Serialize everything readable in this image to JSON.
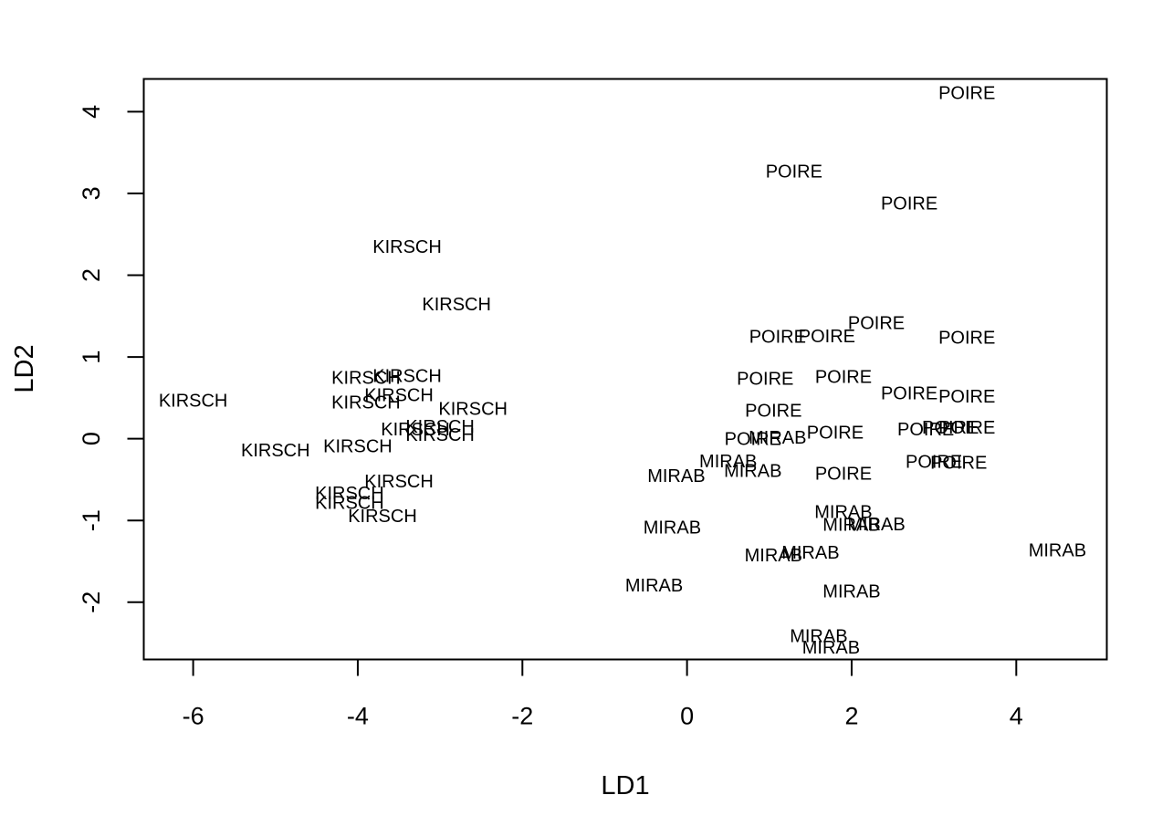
{
  "chart_data": {
    "type": "scatter",
    "marker": "text-label",
    "xlabel": "LD1",
    "ylabel": "LD2",
    "xlim": [
      -6.6,
      5.1
    ],
    "ylim": [
      -2.7,
      4.4
    ],
    "xticks": [
      -6,
      -4,
      -2,
      0,
      2,
      4
    ],
    "yticks": [
      -2,
      -1,
      0,
      1,
      2,
      3,
      4
    ],
    "grid": false,
    "points": [
      {
        "label": "KIRSCH",
        "x": -6.0,
        "y": 0.47
      },
      {
        "label": "KIRSCH",
        "x": -3.4,
        "y": 2.35
      },
      {
        "label": "KIRSCH",
        "x": -2.8,
        "y": 1.65
      },
      {
        "label": "KIRSCH",
        "x": -3.9,
        "y": 0.75
      },
      {
        "label": "KIRSCH",
        "x": -3.4,
        "y": 0.77
      },
      {
        "label": "KIRSCH",
        "x": -3.5,
        "y": 0.54
      },
      {
        "label": "KIRSCH",
        "x": -3.9,
        "y": 0.45
      },
      {
        "label": "KIRSCH",
        "x": -2.6,
        "y": 0.37
      },
      {
        "label": "KIRSCH",
        "x": -3.3,
        "y": 0.12
      },
      {
        "label": "KIRSCH",
        "x": -3.0,
        "y": 0.15
      },
      {
        "label": "KIRSCH",
        "x": -3.0,
        "y": 0.05
      },
      {
        "label": "KIRSCH",
        "x": -5.0,
        "y": -0.14
      },
      {
        "label": "KIRSCH",
        "x": -4.0,
        "y": -0.09
      },
      {
        "label": "KIRSCH",
        "x": -3.5,
        "y": -0.52
      },
      {
        "label": "KIRSCH",
        "x": -4.1,
        "y": -0.66
      },
      {
        "label": "KIRSCH",
        "x": -4.1,
        "y": -0.78
      },
      {
        "label": "KIRSCH",
        "x": -3.7,
        "y": -0.94
      },
      {
        "label": "POIRE",
        "x": 3.4,
        "y": 4.23
      },
      {
        "label": "POIRE",
        "x": 1.3,
        "y": 3.27
      },
      {
        "label": "POIRE",
        "x": 2.7,
        "y": 2.88
      },
      {
        "label": "POIRE",
        "x": 2.3,
        "y": 1.42
      },
      {
        "label": "POIRE",
        "x": 1.1,
        "y": 1.25
      },
      {
        "label": "POIRE",
        "x": 1.7,
        "y": 1.26
      },
      {
        "label": "POIRE",
        "x": 3.4,
        "y": 1.24
      },
      {
        "label": "POIRE",
        "x": 0.95,
        "y": 0.74
      },
      {
        "label": "POIRE",
        "x": 1.9,
        "y": 0.76
      },
      {
        "label": "POIRE",
        "x": 2.7,
        "y": 0.56
      },
      {
        "label": "POIRE",
        "x": 3.4,
        "y": 0.52
      },
      {
        "label": "POIRE",
        "x": 1.05,
        "y": 0.35
      },
      {
        "label": "POIRE",
        "x": 1.8,
        "y": 0.08
      },
      {
        "label": "POIRE",
        "x": 2.9,
        "y": 0.12
      },
      {
        "label": "POIRE",
        "x": 3.2,
        "y": 0.14
      },
      {
        "label": "POIRE",
        "x": 3.4,
        "y": 0.14
      },
      {
        "label": "POIRE",
        "x": 0.8,
        "y": 0.0
      },
      {
        "label": "POIRE",
        "x": 3.0,
        "y": -0.28
      },
      {
        "label": "POIRE",
        "x": 3.3,
        "y": -0.29
      },
      {
        "label": "POIRE",
        "x": 1.9,
        "y": -0.42
      },
      {
        "label": "MIRAB",
        "x": 1.1,
        "y": 0.02
      },
      {
        "label": "MIRAB",
        "x": 0.5,
        "y": -0.27
      },
      {
        "label": "MIRAB",
        "x": 0.8,
        "y": -0.39
      },
      {
        "label": "MIRAB",
        "x": -0.13,
        "y": -0.45
      },
      {
        "label": "MIRAB",
        "x": 1.9,
        "y": -0.89
      },
      {
        "label": "MIRAB",
        "x": 2.0,
        "y": -1.05
      },
      {
        "label": "MIRAB",
        "x": 2.3,
        "y": -1.04
      },
      {
        "label": "MIRAB",
        "x": -0.18,
        "y": -1.08
      },
      {
        "label": "MIRAB",
        "x": 1.05,
        "y": -1.42
      },
      {
        "label": "MIRAB",
        "x": 1.5,
        "y": -1.39
      },
      {
        "label": "MIRAB",
        "x": 4.5,
        "y": -1.36
      },
      {
        "label": "MIRAB",
        "x": -0.4,
        "y": -1.79
      },
      {
        "label": "MIRAB",
        "x": 2.0,
        "y": -1.86
      },
      {
        "label": "MIRAB",
        "x": 1.6,
        "y": -2.41
      },
      {
        "label": "MIRAB",
        "x": 1.75,
        "y": -2.55
      }
    ]
  }
}
